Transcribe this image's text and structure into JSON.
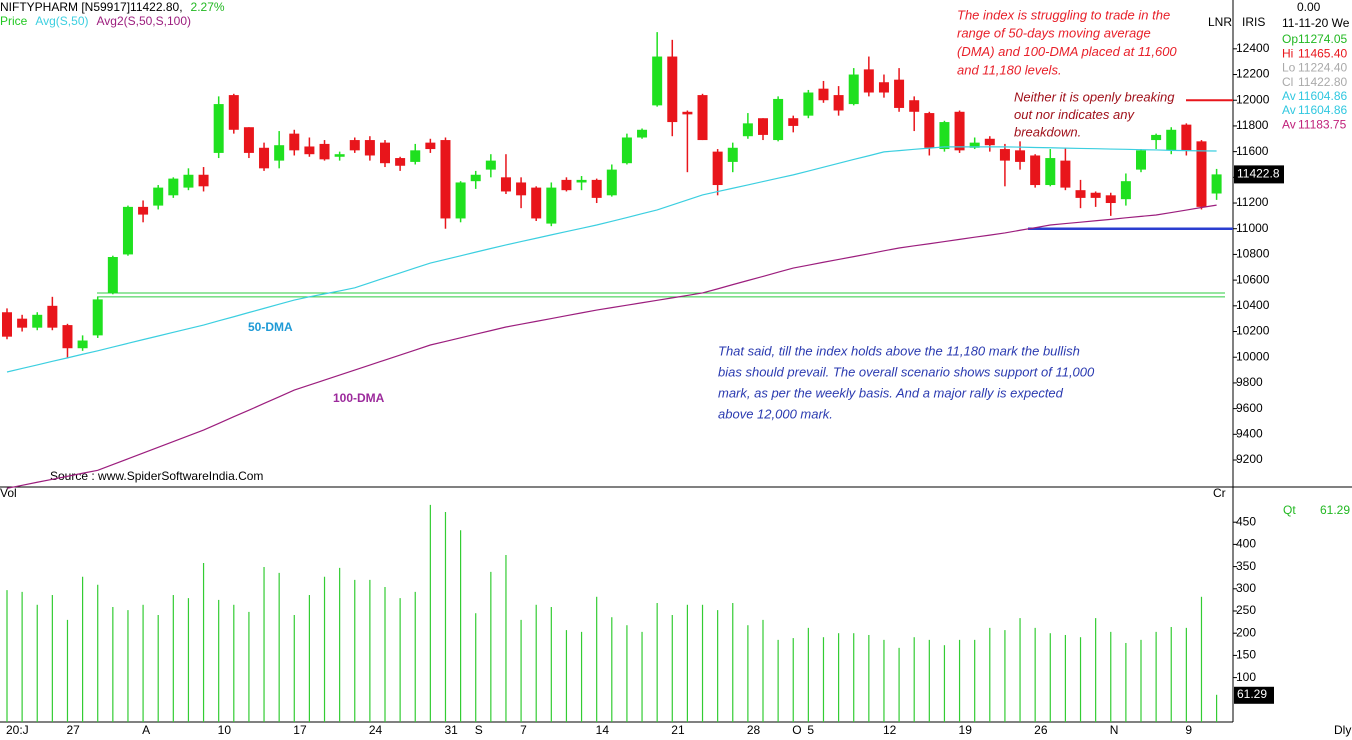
{
  "chart_data": {
    "type": "candlestick",
    "header": "NIFTYPHARM [N59917]11422.80,",
    "change": "2.27%",
    "categories": [
      "20:J",
      null,
      null,
      null,
      "27",
      null,
      null,
      null,
      null,
      "A",
      null,
      null,
      null,
      null,
      "10",
      null,
      null,
      null,
      null,
      "17",
      null,
      null,
      null,
      null,
      "24",
      null,
      null,
      null,
      null,
      "31",
      null,
      "S",
      null,
      null,
      "7",
      null,
      null,
      null,
      null,
      "14",
      null,
      null,
      null,
      null,
      "21",
      null,
      null,
      null,
      null,
      "28",
      null,
      null,
      "O",
      "5",
      null,
      null,
      null,
      null,
      "12",
      null,
      null,
      null,
      null,
      "19",
      null,
      null,
      null,
      null,
      "26",
      null,
      null,
      null,
      null,
      "N",
      null,
      null,
      null,
      null,
      "9",
      null,
      null
    ],
    "series": [
      {
        "name": "Price",
        "color": "#22c822",
        "up_color": "#1fe01f",
        "down_color": "#e8151b",
        "open": [
          10350,
          10300,
          10230,
          10400,
          10250,
          10070,
          10170,
          10500,
          10800,
          11170,
          11180,
          11260,
          11320,
          11420,
          11590,
          12040,
          11790,
          11630,
          11530,
          11740,
          11640,
          11660,
          11560,
          11690,
          11690,
          11670,
          11550,
          11520,
          11670,
          11690,
          11080,
          11370,
          11460,
          11400,
          11360,
          11320,
          11040,
          11380,
          11360,
          11380,
          11260,
          11510,
          11710,
          11960,
          12340,
          11910,
          12040,
          11600,
          11520,
          11720,
          11860,
          11690,
          11860,
          11880,
          12090,
          12040,
          11970,
          12240,
          12140,
          12160,
          12000,
          11900,
          11620,
          11910,
          11630,
          11700,
          11620,
          11610,
          11570,
          11340,
          11530,
          11300,
          11280,
          11260,
          11230,
          11460,
          11690,
          11610,
          11810,
          11680,
          11274.05
        ],
        "high": [
          10380,
          10330,
          10350,
          10470,
          10260,
          10170,
          10470,
          10790,
          11180,
          11220,
          11340,
          11400,
          11470,
          11480,
          12030,
          12050,
          11790,
          11670,
          11760,
          11770,
          11710,
          11690,
          11600,
          11710,
          11720,
          11690,
          11560,
          11660,
          11700,
          11710,
          11370,
          11450,
          11580,
          11580,
          11400,
          11330,
          11360,
          11400,
          11410,
          11390,
          11500,
          11740,
          11780,
          12530,
          12470,
          11920,
          12050,
          11620,
          11670,
          11900,
          11860,
          12030,
          11880,
          12080,
          12150,
          12110,
          12250,
          12340,
          12200,
          12250,
          12030,
          11910,
          11840,
          11920,
          11710,
          11720,
          11660,
          11680,
          11580,
          11620,
          11630,
          11380,
          11290,
          11280,
          11430,
          11620,
          11740,
          11790,
          11820,
          11690,
          11465.4
        ],
        "low": [
          10140,
          10200,
          10210,
          10210,
          9990,
          10050,
          10150,
          10490,
          10790,
          11050,
          11150,
          11240,
          11300,
          11290,
          11550,
          11740,
          11550,
          11450,
          11470,
          11570,
          11560,
          11530,
          11530,
          11590,
          11530,
          11480,
          11450,
          11500,
          11590,
          11000,
          11050,
          11310,
          11400,
          11270,
          11160,
          11060,
          11020,
          11290,
          11300,
          11200,
          11250,
          11500,
          11700,
          11950,
          11720,
          11440,
          11690,
          11260,
          11440,
          11700,
          11690,
          11680,
          11750,
          11860,
          11980,
          11880,
          11960,
          12030,
          12020,
          11910,
          11760,
          11570,
          11600,
          11590,
          11620,
          11600,
          11330,
          11460,
          11320,
          11330,
          11300,
          11160,
          11170,
          11100,
          11180,
          11440,
          11620,
          11580,
          11570,
          11150,
          11224.4
        ],
        "close": [
          10160,
          10230,
          10330,
          10230,
          10070,
          10130,
          10450,
          10780,
          11170,
          11110,
          11320,
          11390,
          11420,
          11330,
          11970,
          11770,
          11590,
          11470,
          11650,
          11610,
          11580,
          11540,
          11580,
          11610,
          11570,
          11510,
          11490,
          11610,
          11620,
          11080,
          11360,
          11420,
          11530,
          11290,
          11260,
          11080,
          11320,
          11300,
          11380,
          11240,
          11460,
          11710,
          11770,
          12340,
          11830,
          11890,
          11690,
          11340,
          11630,
          11820,
          11730,
          12010,
          11800,
          12060,
          12000,
          11920,
          12200,
          12060,
          12060,
          11940,
          11910,
          11630,
          11830,
          11610,
          11670,
          11650,
          11530,
          11520,
          11340,
          11550,
          11320,
          11240,
          11240,
          11200,
          11370,
          11610,
          11730,
          11770,
          11610,
          11170,
          11422.8
        ]
      },
      {
        "name": "Avg(S,50)",
        "color": "#3ccfe0",
        "label": "50-DMA",
        "label_color": "#1e9ad6",
        "values": [
          9885,
          9913,
          9940,
          9968,
          9995,
          10023,
          10050,
          10079,
          10108,
          10137,
          10165,
          10194,
          10222,
          10250,
          10283,
          10315,
          10348,
          10380,
          10413,
          10445,
          10470,
          10493,
          10516,
          10540,
          10579,
          10618,
          10656,
          10695,
          10733,
          10761,
          10789,
          10818,
          10846,
          10874,
          10900,
          10926,
          10952,
          10978,
          11003,
          11029,
          11058,
          11087,
          11117,
          11146,
          11185,
          11224,
          11263,
          11289,
          11315,
          11341,
          11367,
          11393,
          11419,
          11449,
          11479,
          11509,
          11539,
          11568,
          11598,
          11608,
          11618,
          11627,
          11637,
          11637,
          11637,
          11637,
          11637,
          11635,
          11632,
          11630,
          11627,
          11625,
          11623,
          11620,
          11618,
          11615,
          11613,
          11610,
          11608,
          11606,
          11604.86
        ]
      },
      {
        "name": "Avg2(S,50,S,100)",
        "color": "#9c1e7e",
        "label": "100-DMA",
        "label_color": "#9c2a9c",
        "values": [
          8980,
          9003,
          9027,
          9050,
          9073,
          9097,
          9120,
          9165,
          9209,
          9254,
          9299,
          9344,
          9388,
          9433,
          9485,
          9537,
          9588,
          9640,
          9692,
          9744,
          9783,
          9822,
          9861,
          9900,
          9939,
          9978,
          10017,
          10056,
          10095,
          10123,
          10151,
          10179,
          10207,
          10235,
          10257,
          10279,
          10301,
          10323,
          10345,
          10367,
          10386,
          10405,
          10424,
          10443,
          10462,
          10481,
          10500,
          10532,
          10565,
          10597,
          10629,
          10662,
          10694,
          10716,
          10739,
          10761,
          10783,
          10805,
          10828,
          10850,
          10867,
          10883,
          10900,
          10917,
          10934,
          10950,
          10967,
          10988,
          11008,
          11029,
          11040,
          11051,
          11062,
          11073,
          11085,
          11096,
          11107,
          11126,
          11145,
          11165,
          11183.75
        ]
      }
    ],
    "ylim": [
      8990,
      12780
    ],
    "yticks": [
      9200,
      9400,
      9600,
      9800,
      10000,
      10200,
      10400,
      10600,
      10800,
      11000,
      11200,
      11400,
      11600,
      11800,
      12000,
      12200,
      12400
    ],
    "last_price_label": "11422.8",
    "levels": [
      {
        "value": 10500,
        "color": "#2ecc40"
      },
      {
        "value": 10470,
        "color": "#2ecc40"
      },
      {
        "value": 12000,
        "color": "#e8151b"
      },
      {
        "value": 11000,
        "color": "#2a3ed0"
      }
    ],
    "volume": {
      "label": "Vol",
      "color": "#33cc33",
      "ylim": [
        0,
        500
      ],
      "yticks": [
        100,
        150,
        200,
        250,
        300,
        350,
        400,
        450
      ],
      "values": [
        297,
        293,
        264,
        286,
        230,
        327,
        309,
        259,
        252,
        264,
        241,
        286,
        279,
        358,
        275,
        264,
        248,
        349,
        336,
        241,
        286,
        327,
        347,
        320,
        320,
        304,
        279,
        293,
        489,
        473,
        432,
        245,
        338,
        376,
        230,
        264,
        259,
        207,
        203,
        282,
        236,
        218,
        203,
        268,
        241,
        264,
        264,
        252,
        268,
        218,
        230,
        185,
        189,
        212,
        191,
        200,
        200,
        196,
        185,
        167,
        191,
        185,
        173,
        185,
        185,
        212,
        207,
        234,
        212,
        200,
        196,
        191,
        234,
        203,
        178,
        185,
        203,
        214,
        212,
        282,
        61.29
      ],
      "last_label": "61.29",
      "qt_label": "Qt",
      "unit_label": "Cr"
    },
    "annotations": [
      {
        "color": "#e8202a",
        "lines": [
          "The index is struggling to trade in the",
          "range of 50-days moving average",
          "(DMA) and 100-DMA placed at 11,600",
          "and 11,180 levels."
        ]
      },
      {
        "color": "#a0101a",
        "lines": [
          "Neither it is openly breaking",
          "out nor indicates any",
          "breakdown."
        ]
      },
      {
        "color": "#2a3ab0",
        "lines": [
          "That said, till the index holds above the 11,180 mark the bullish",
          "bias should prevail. The overall scenario shows support of 11,000",
          "mark, as per the weekly basis. And a major rally is expected",
          "above 12,000 mark."
        ]
      }
    ],
    "source": "Source : www.SpiderSoftwareIndia.Com",
    "panel_labels": {
      "lnr": "LNR",
      "iris": "IRIS",
      "period": "Dly"
    },
    "info": {
      "top": "0.00",
      "date": "11-11-20 We",
      "rows": [
        {
          "label": "Op",
          "value": "11274.05",
          "color": "#22b822"
        },
        {
          "label": "Hi",
          "value": "11465.40",
          "color": "#e8151b"
        },
        {
          "label": "Lo",
          "value": "11224.40",
          "color": "#aaaaaa"
        },
        {
          "label": "Cl",
          "value": "11422.80",
          "color": "#aaaaaa"
        },
        {
          "label": "Av",
          "value": "11604.86",
          "color": "#30c8e0"
        },
        {
          "label": "Av",
          "value": "11604.86",
          "color": "#30c8e0"
        },
        {
          "label": "Av",
          "value": "11183.75",
          "color": "#c0207a"
        }
      ]
    }
  }
}
